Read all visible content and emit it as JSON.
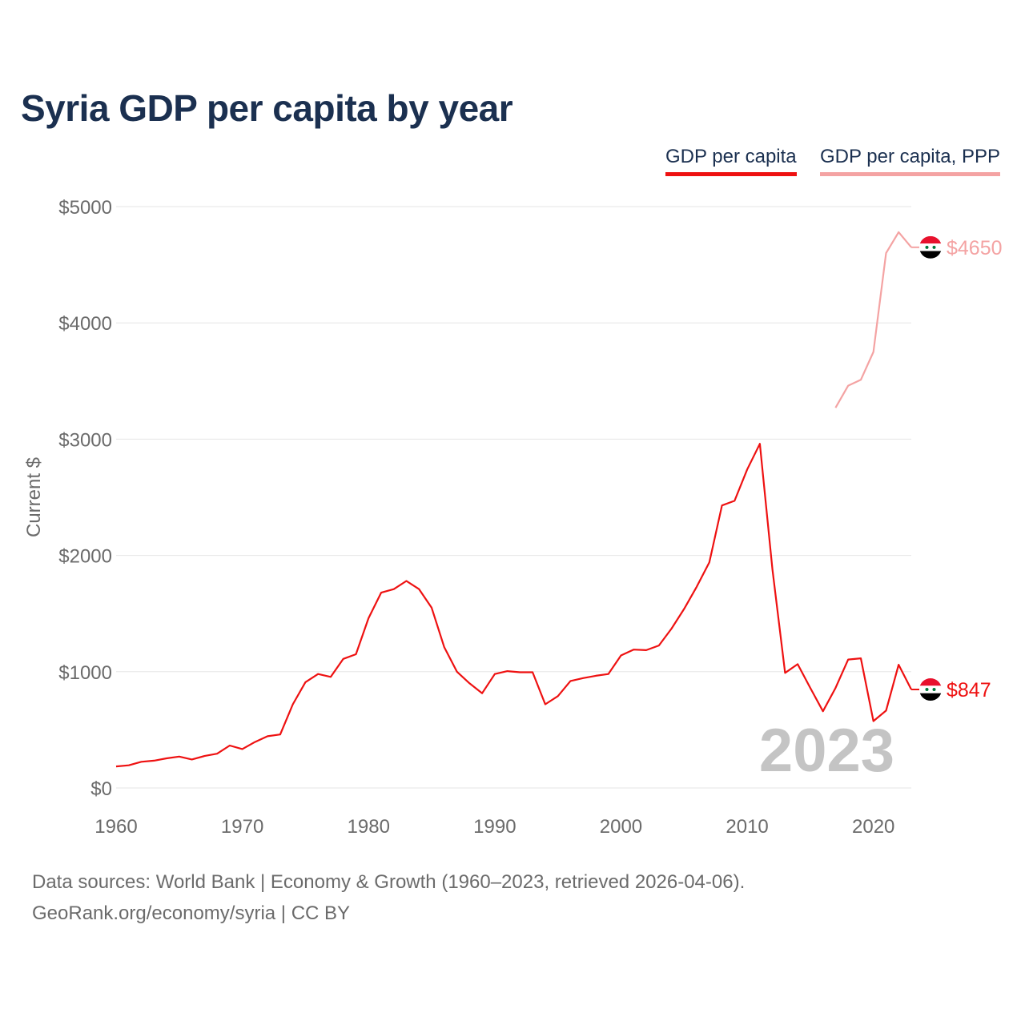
{
  "title": "Syria GDP per capita by year",
  "legend": [
    {
      "label": "GDP per capita",
      "color": "#ee1111"
    },
    {
      "label": "GDP per capita, PPP",
      "color": "#f4a3a3"
    }
  ],
  "footer": {
    "line1": "Data sources: World Bank | Economy & Growth (1960–2023, retrieved 2026-04-06).",
    "line2": "GeoRank.org/economy/syria | CC BY"
  },
  "chart_data": {
    "type": "line",
    "title": "Syria GDP per capita by year",
    "xlabel": "",
    "ylabel": "Current $",
    "xlim": [
      1960,
      2023
    ],
    "ylim": [
      0,
      5000
    ],
    "x_ticks": [
      1960,
      1970,
      1980,
      1990,
      2000,
      2010,
      2020
    ],
    "y_ticks": [
      0,
      1000,
      2000,
      3000,
      4000,
      5000
    ],
    "y_tick_labels": [
      "$0",
      "$1000",
      "$2000",
      "$3000",
      "$4000",
      "$5000"
    ],
    "x_tick_labels": [
      "1960",
      "1970",
      "1980",
      "1990",
      "2000",
      "2010",
      "2020"
    ],
    "grid": true,
    "year_annotation": "2023",
    "series": [
      {
        "name": "GDP per capita",
        "color": "#ee1111",
        "end_label": "$847",
        "x": [
          1960,
          1961,
          1962,
          1963,
          1964,
          1965,
          1966,
          1967,
          1968,
          1969,
          1970,
          1971,
          1972,
          1973,
          1974,
          1975,
          1976,
          1977,
          1978,
          1979,
          1980,
          1981,
          1982,
          1983,
          1984,
          1985,
          1986,
          1987,
          1988,
          1989,
          1990,
          1991,
          1992,
          1993,
          1994,
          1995,
          1996,
          1997,
          1998,
          1999,
          2000,
          2001,
          2002,
          2003,
          2004,
          2005,
          2006,
          2007,
          2008,
          2009,
          2010,
          2011,
          2012,
          2013,
          2014,
          2015,
          2016,
          2017,
          2018,
          2019,
          2020,
          2021,
          2022,
          2023
        ],
        "values": [
          185,
          195,
          225,
          235,
          255,
          270,
          245,
          275,
          295,
          365,
          335,
          395,
          445,
          460,
          720,
          910,
          980,
          955,
          1110,
          1150,
          1460,
          1680,
          1710,
          1780,
          1710,
          1550,
          1210,
          1000,
          900,
          815,
          980,
          1005,
          995,
          995,
          720,
          790,
          920,
          945,
          965,
          980,
          1140,
          1190,
          1185,
          1225,
          1370,
          1540,
          1730,
          1940,
          2430,
          2470,
          2740,
          2960,
          1880,
          990,
          1065,
          860,
          660,
          860,
          1105,
          1115,
          575,
          665,
          1060,
          847
        ]
      },
      {
        "name": "GDP per capita, PPP",
        "color": "#f4a3a3",
        "end_label": "$4650",
        "x": [
          2017,
          2018,
          2019,
          2020,
          2021,
          2022,
          2023
        ],
        "values": [
          3270,
          3460,
          3510,
          3750,
          4600,
          4780,
          4650
        ]
      }
    ]
  }
}
